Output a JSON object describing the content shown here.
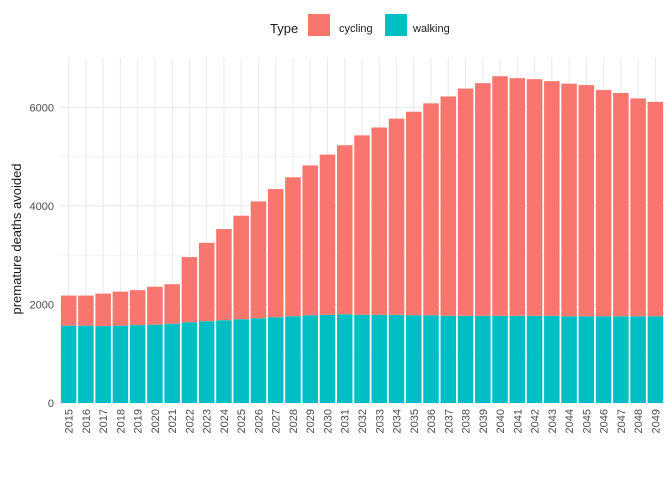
{
  "chart_data": {
    "type": "bar",
    "stacked": true,
    "categories": [
      "2015",
      "2016",
      "2017",
      "2018",
      "2019",
      "2020",
      "2021",
      "2022",
      "2023",
      "2024",
      "2025",
      "2026",
      "2027",
      "2028",
      "2029",
      "2030",
      "2031",
      "2032",
      "2033",
      "2034",
      "2035",
      "2036",
      "2037",
      "2038",
      "2039",
      "2040",
      "2041",
      "2042",
      "2043",
      "2044",
      "2045",
      "2046",
      "2047",
      "2048",
      "2049"
    ],
    "series": [
      {
        "name": "walking",
        "color": "#00BFC4",
        "values": [
          1570,
          1570,
          1560,
          1570,
          1580,
          1590,
          1610,
          1640,
          1660,
          1680,
          1700,
          1720,
          1740,
          1760,
          1780,
          1790,
          1800,
          1790,
          1790,
          1790,
          1780,
          1780,
          1770,
          1770,
          1770,
          1770,
          1770,
          1770,
          1770,
          1760,
          1760,
          1760,
          1760,
          1760,
          1760
        ]
      },
      {
        "name": "cycling",
        "color": "#F8766D",
        "values": [
          610,
          610,
          660,
          690,
          710,
          770,
          800,
          1320,
          1590,
          1850,
          2100,
          2370,
          2600,
          2820,
          3040,
          3250,
          3430,
          3640,
          3800,
          3980,
          4130,
          4300,
          4450,
          4610,
          4720,
          4860,
          4820,
          4800,
          4760,
          4720,
          4690,
          4590,
          4530,
          4420,
          4350
        ]
      }
    ],
    "title": "",
    "xlabel": "",
    "ylabel": "premature deaths avoided",
    "ylim": [
      0,
      7000
    ],
    "yticks": [
      0,
      2000,
      4000,
      6000
    ],
    "grid": true,
    "legend": {
      "title": "Type",
      "position": "top",
      "entries": [
        {
          "label": "cycling",
          "color": "#F8766D"
        },
        {
          "label": "walking",
          "color": "#00BFC4"
        }
      ]
    }
  }
}
